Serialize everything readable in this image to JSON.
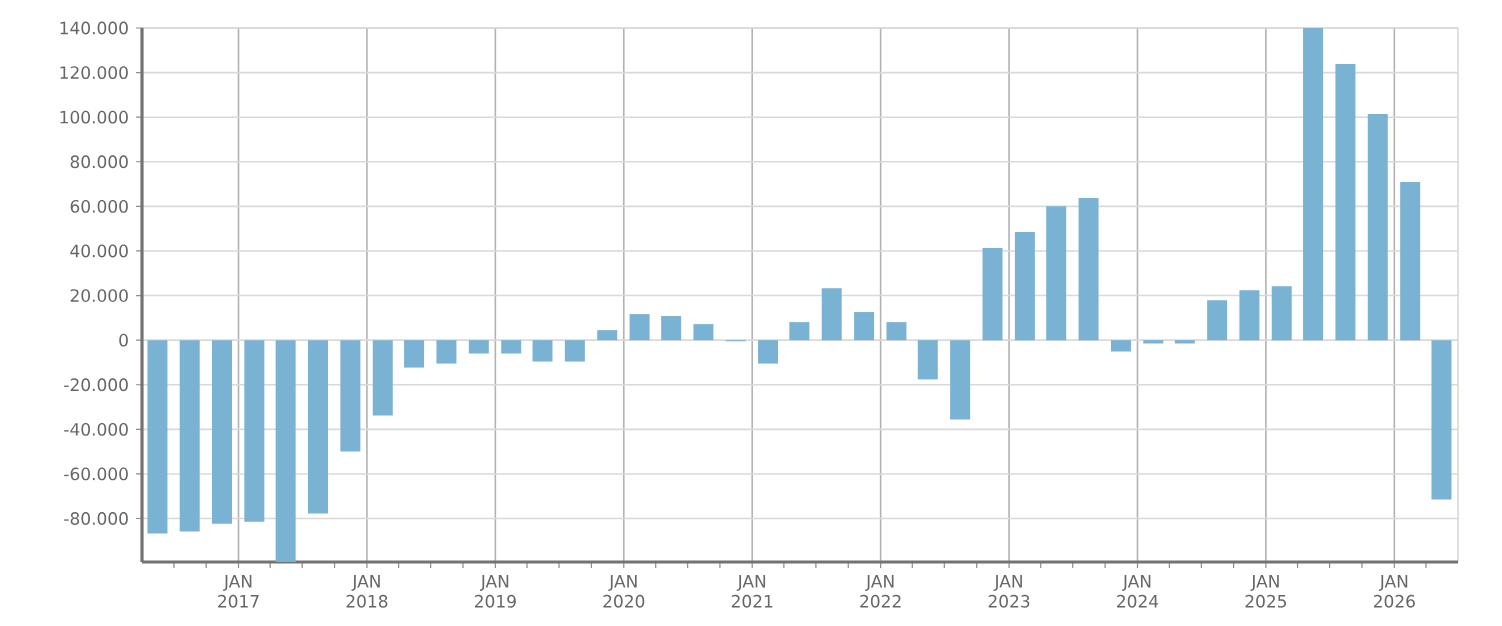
{
  "chart_data": {
    "type": "bar",
    "color": "#7ab2d4",
    "grid": true,
    "x": [
      "2016-05-15",
      "2016-08-15",
      "2016-11-15",
      "2017-02-15",
      "2017-05-15",
      "2017-08-15",
      "2017-11-15",
      "2018-02-15",
      "2018-05-15",
      "2018-08-15",
      "2018-11-15",
      "2019-02-15",
      "2019-05-15",
      "2019-08-15",
      "2019-11-15",
      "2020-02-15",
      "2020-05-15",
      "2020-08-15",
      "2020-11-15",
      "2021-02-15",
      "2021-05-15",
      "2021-08-15",
      "2021-11-15",
      "2022-02-15",
      "2022-05-15",
      "2022-08-15",
      "2022-11-15",
      "2023-02-15",
      "2023-05-15",
      "2023-08-15",
      "2023-11-15",
      "2024-02-15",
      "2024-05-15",
      "2024-08-15",
      "2024-11-15",
      "2025-02-15",
      "2025-05-15",
      "2025-08-15",
      "2025-11-15",
      "2026-02-15",
      "2026-05-15"
    ],
    "values": [
      -86700,
      -85800,
      -82300,
      -81400,
      -99500,
      -77800,
      -49900,
      -33800,
      -12300,
      -10500,
      -6000,
      -6000,
      -9600,
      -9600,
      4500,
      11700,
      10800,
      7200,
      -500,
      -10500,
      8100,
      23300,
      12600,
      8100,
      -17600,
      -35600,
      41300,
      48500,
      60100,
      63700,
      -5100,
      -1500,
      -1500,
      17900,
      22400,
      24200,
      140000,
      123800,
      101400,
      70900,
      -71500
    ],
    "xlim": [
      "2016-04-01",
      "2026-07-01"
    ],
    "xticks": [
      {
        "value": "2016-07-01",
        "label": null
      },
      {
        "value": "2016-10-01",
        "label": null
      },
      {
        "value": "2017-01-01",
        "label": "JAN 2017"
      },
      {
        "value": "2017-04-01",
        "label": null
      },
      {
        "value": "2017-07-01",
        "label": null
      },
      {
        "value": "2017-10-01",
        "label": null
      },
      {
        "value": "2018-01-01",
        "label": "JAN 2018"
      },
      {
        "value": "2018-04-01",
        "label": null
      },
      {
        "value": "2018-07-01",
        "label": null
      },
      {
        "value": "2018-10-01",
        "label": null
      },
      {
        "value": "2019-01-01",
        "label": "JAN 2019"
      },
      {
        "value": "2019-04-01",
        "label": null
      },
      {
        "value": "2019-07-01",
        "label": null
      },
      {
        "value": "2019-10-01",
        "label": null
      },
      {
        "value": "2020-01-01",
        "label": "JAN 2020"
      },
      {
        "value": "2020-04-01",
        "label": null
      },
      {
        "value": "2020-07-01",
        "label": null
      },
      {
        "value": "2020-10-01",
        "label": null
      },
      {
        "value": "2021-01-01",
        "label": "JAN 2021"
      },
      {
        "value": "2021-04-01",
        "label": null
      },
      {
        "value": "2021-07-01",
        "label": null
      },
      {
        "value": "2021-10-01",
        "label": null
      },
      {
        "value": "2022-01-01",
        "label": "JAN 2022"
      },
      {
        "value": "2022-04-01",
        "label": null
      },
      {
        "value": "2022-07-01",
        "label": null
      },
      {
        "value": "2022-10-01",
        "label": null
      },
      {
        "value": "2023-01-01",
        "label": "JAN 2023"
      },
      {
        "value": "2023-04-01",
        "label": null
      },
      {
        "value": "2023-07-01",
        "label": null
      },
      {
        "value": "2023-10-01",
        "label": null
      },
      {
        "value": "2024-01-01",
        "label": "JAN 2024"
      },
      {
        "value": "2024-04-01",
        "label": null
      },
      {
        "value": "2024-07-01",
        "label": null
      },
      {
        "value": "2024-10-01",
        "label": null
      },
      {
        "value": "2025-01-01",
        "label": "JAN 2025"
      },
      {
        "value": "2025-04-01",
        "label": null
      },
      {
        "value": "2025-07-01",
        "label": null
      },
      {
        "value": "2025-10-01",
        "label": null
      },
      {
        "value": "2026-01-01",
        "label": "JAN 2026"
      },
      {
        "value": "2026-04-01",
        "label": null
      }
    ],
    "ylim": [
      -99500,
      140000
    ],
    "yticks": [
      {
        "value": -80000,
        "label": "-80.000"
      },
      {
        "value": -60000,
        "label": "-60.000"
      },
      {
        "value": -40000,
        "label": "-40.000"
      },
      {
        "value": -20000,
        "label": "-20.000"
      },
      0,
      {
        "value": 20000,
        "label": "20.000"
      },
      {
        "value": 40000,
        "label": "40.000"
      },
      {
        "value": 60000,
        "label": "60.000"
      },
      {
        "value": 80000,
        "label": "80.000"
      },
      {
        "value": 100000,
        "label": "100.000"
      },
      {
        "value": 120000,
        "label": "120.000"
      },
      {
        "value": 140000,
        "label": "140.000"
      }
    ]
  }
}
